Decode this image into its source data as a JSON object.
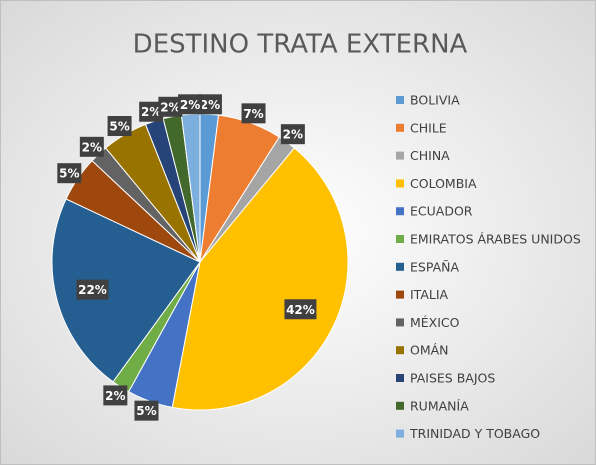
{
  "chart_data": {
    "type": "pie",
    "title": "DESTINO TRATA EXTERNA",
    "categories": [
      "BOLIVIA",
      "CHILE",
      "CHINA",
      "COLOMBIA",
      "ECUADOR",
      "EMIRATOS ÁRABES UNIDOS",
      "ESPAÑA",
      "ITALIA",
      "MÉXICO",
      "OMÁN",
      "PAISES BAJOS",
      "RUMANÍA",
      "TRINIDAD Y TOBAGO"
    ],
    "values": [
      2,
      7,
      2,
      42,
      5,
      2,
      22,
      5,
      2,
      5,
      2,
      2,
      2
    ],
    "value_labels": [
      "2%",
      "7%",
      "2%",
      "42%",
      "5%",
      "2%",
      "22%",
      "5%",
      "2%",
      "5%",
      "2%",
      "2%",
      "2%"
    ],
    "colors": [
      "#5b9bd5",
      "#ed7d31",
      "#a5a5a5",
      "#ffc000",
      "#4472c4",
      "#70ad47",
      "#255e91",
      "#9e480e",
      "#636363",
      "#997300",
      "#264478",
      "#43682b",
      "#7cafdd"
    ],
    "legend": "right"
  }
}
